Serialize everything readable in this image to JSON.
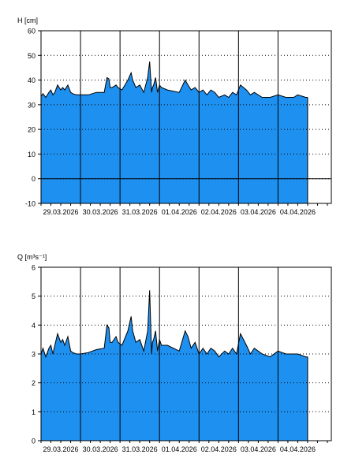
{
  "chart_data": [
    {
      "type": "area",
      "ylabel": "H [cm]",
      "ylim": [
        -10,
        60
      ],
      "yticks": [
        -10,
        0,
        10,
        20,
        30,
        40,
        50,
        60
      ],
      "xlim": [
        0,
        7.35
      ],
      "xticks": [
        {
          "x": 0.5,
          "label": "29.03.2026"
        },
        {
          "x": 1.5,
          "label": "30.03.2026"
        },
        {
          "x": 2.5,
          "label": "31.03.2026"
        },
        {
          "x": 3.5,
          "label": "01.04.2026"
        },
        {
          "x": 4.5,
          "label": "02.04.2026"
        },
        {
          "x": 5.5,
          "label": "03.04.2026"
        },
        {
          "x": 6.5,
          "label": "04.04.2026"
        }
      ],
      "grid": true,
      "fill_color": "#1e90f0",
      "series": [
        {
          "x": [
            0,
            0.05,
            0.12,
            0.2,
            0.25,
            0.3,
            0.35,
            0.42,
            0.5,
            0.55,
            0.6,
            0.68,
            0.75,
            0.8,
            0.9,
            1.0,
            1.2,
            1.4,
            1.6,
            1.67,
            1.72,
            1.75,
            1.8,
            1.9,
            1.95,
            2.05,
            2.2,
            2.28,
            2.32,
            2.4,
            2.5,
            2.6,
            2.7,
            2.75,
            2.8,
            2.82,
            2.85,
            2.9,
            2.95,
            3.0,
            3.05,
            3.2,
            3.5,
            3.65,
            3.72,
            3.8,
            3.9,
            4.0,
            4.1,
            4.2,
            4.3,
            4.4,
            4.5,
            4.65,
            4.75,
            4.85,
            4.95,
            5.05,
            5.2,
            5.3,
            5.4,
            5.6,
            5.8,
            6.0,
            6.2,
            6.4,
            6.5,
            6.7,
            6.75
          ],
          "values": [
            33.5,
            34.5,
            33,
            35,
            36,
            34,
            35,
            38,
            36,
            37,
            36,
            38,
            35,
            34.5,
            34,
            34,
            34,
            35,
            35,
            41,
            40.5,
            37,
            37,
            38,
            37,
            36,
            40,
            43,
            40,
            37,
            38,
            35,
            41,
            47.5,
            35,
            37,
            38,
            41,
            35,
            38,
            37,
            36,
            35,
            40,
            38,
            36,
            37,
            35,
            36,
            34,
            36,
            35,
            33,
            34,
            33,
            35,
            34,
            38,
            36,
            34,
            35,
            33,
            33,
            34,
            33,
            33,
            34,
            33,
            33
          ]
        }
      ]
    },
    {
      "type": "area",
      "ylabel": "Q [m³s⁻¹]",
      "ylim": [
        0,
        6
      ],
      "yticks": [
        0,
        1,
        2,
        3,
        4,
        5,
        6
      ],
      "xlim": [
        0,
        7.35
      ],
      "xticks": [
        {
          "x": 0.5,
          "label": "29.03.2026"
        },
        {
          "x": 1.5,
          "label": "30.03.2026"
        },
        {
          "x": 2.5,
          "label": "31.03.2026"
        },
        {
          "x": 3.5,
          "label": "01.04.2026"
        },
        {
          "x": 4.5,
          "label": "02.04.2026"
        },
        {
          "x": 5.5,
          "label": "03.04.2026"
        },
        {
          "x": 6.5,
          "label": "04.04.2026"
        }
      ],
      "grid": true,
      "fill_color": "#1e90f0",
      "series": [
        {
          "x": [
            0,
            0.05,
            0.12,
            0.2,
            0.25,
            0.3,
            0.35,
            0.42,
            0.5,
            0.55,
            0.6,
            0.68,
            0.75,
            0.8,
            0.9,
            1.0,
            1.2,
            1.4,
            1.6,
            1.67,
            1.72,
            1.75,
            1.8,
            1.9,
            1.95,
            2.05,
            2.2,
            2.28,
            2.32,
            2.4,
            2.5,
            2.6,
            2.7,
            2.75,
            2.8,
            2.82,
            2.85,
            2.9,
            2.95,
            3.0,
            3.05,
            3.2,
            3.5,
            3.65,
            3.72,
            3.8,
            3.9,
            4.0,
            4.1,
            4.2,
            4.3,
            4.4,
            4.5,
            4.65,
            4.75,
            4.85,
            4.95,
            5.05,
            5.2,
            5.3,
            5.4,
            5.6,
            5.8,
            6.0,
            6.2,
            6.4,
            6.5,
            6.7,
            6.75
          ],
          "values": [
            3.0,
            3.2,
            2.9,
            3.2,
            3.3,
            3.0,
            3.3,
            3.7,
            3.4,
            3.5,
            3.3,
            3.6,
            3.1,
            3.05,
            3.0,
            3.0,
            3.05,
            3.15,
            3.2,
            4.0,
            3.9,
            3.4,
            3.4,
            3.6,
            3.4,
            3.3,
            3.8,
            4.3,
            3.8,
            3.4,
            3.5,
            3.1,
            3.8,
            5.2,
            3.0,
            3.4,
            3.5,
            3.8,
            3.1,
            3.5,
            3.3,
            3.3,
            3.1,
            3.8,
            3.6,
            3.2,
            3.4,
            3.0,
            3.2,
            3.0,
            3.2,
            3.1,
            2.9,
            3.1,
            3.0,
            3.2,
            3.0,
            3.7,
            3.3,
            3.0,
            3.2,
            3.0,
            2.9,
            3.1,
            3.0,
            3.0,
            3.0,
            2.9,
            2.9
          ]
        }
      ]
    }
  ]
}
